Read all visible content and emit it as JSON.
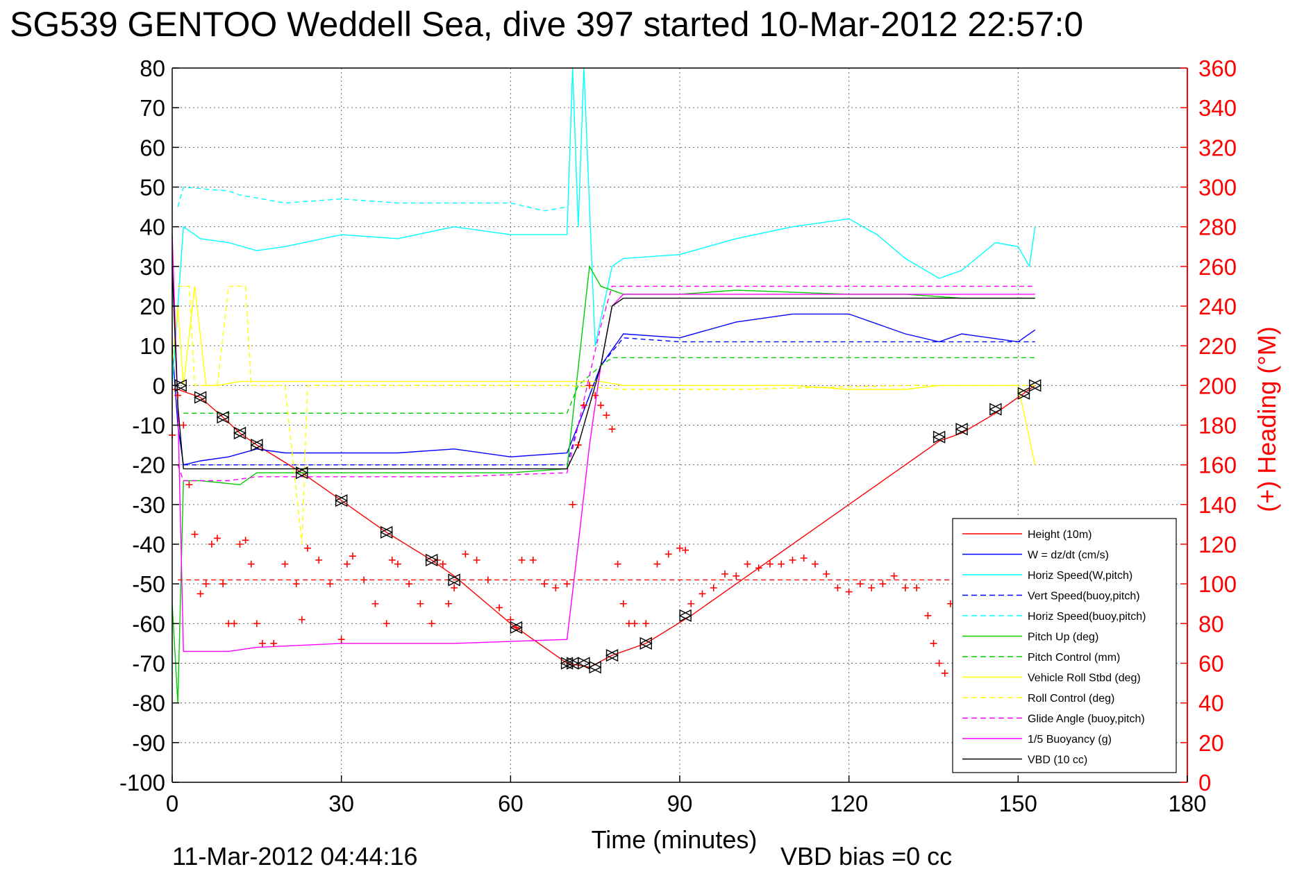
{
  "chart_data": {
    "type": "line",
    "title": "SG539 GENTOO Weddell Sea, dive 397 started 10-Mar-2012 22:57:0",
    "xlabel": "Time (minutes)",
    "ylabel": "",
    "ylabel_right": "(+) Heading (°M)",
    "xlim": [
      0,
      180
    ],
    "ylim": [
      -100,
      80
    ],
    "ylim_right": [
      0,
      360
    ],
    "x_ticks": [
      "0",
      "30",
      "60",
      "90",
      "120",
      "150",
      "180"
    ],
    "y_ticks": [
      "80",
      "70",
      "60",
      "50",
      "40",
      "30",
      "20",
      "10",
      "0",
      "-10",
      "-20",
      "-30",
      "-40",
      "-50",
      "-60",
      "-70",
      "-80",
      "-90",
      "-100"
    ],
    "y_ticks_right": [
      "360",
      "340",
      "320",
      "300",
      "280",
      "260",
      "240",
      "220",
      "200",
      "180",
      "160",
      "140",
      "120",
      "100",
      "80",
      "60",
      "40",
      "20",
      "0"
    ],
    "grid": true,
    "legend_position": "bottom-right",
    "footer_left": "11-Mar-2012 04:44:16",
    "footer_right": "VBD bias =0 cc",
    "series": [
      {
        "name": "Height (10m)",
        "color": "#ff0000",
        "style": "solid",
        "x": [
          0,
          1,
          5,
          9,
          12,
          15,
          23,
          30,
          38,
          46,
          50,
          60,
          70,
          74,
          78,
          84,
          92,
          100,
          110,
          120,
          130,
          136,
          140,
          146,
          150,
          153
        ],
        "y": [
          -1,
          -1,
          -3,
          -8,
          -12,
          -15,
          -22,
          -29,
          -37,
          -44,
          -48,
          -60,
          -70,
          -71,
          -68,
          -65,
          -58,
          -50,
          -40,
          -30,
          -20,
          -14,
          -12,
          -7,
          -3,
          0
        ]
      },
      {
        "name": "W = dz/dt (cm/s)",
        "color": "#0000ff",
        "style": "solid",
        "x": [
          0,
          1,
          2,
          5,
          10,
          15,
          20,
          30,
          40,
          50,
          60,
          70,
          72,
          76,
          80,
          90,
          100,
          110,
          120,
          130,
          136,
          140,
          150,
          153
        ],
        "y": [
          10,
          -10,
          -20,
          -19,
          -18,
          -16,
          -17,
          -17,
          -17,
          -16,
          -18,
          -17,
          -10,
          5,
          13,
          12,
          16,
          18,
          18,
          13,
          11,
          13,
          11,
          14
        ]
      },
      {
        "name": "Horiz Speed(W,pitch)",
        "color": "#00ffff",
        "style": "solid",
        "x": [
          0,
          1,
          2,
          5,
          10,
          15,
          20,
          30,
          40,
          50,
          60,
          70,
          71,
          72,
          73,
          75,
          78,
          80,
          90,
          100,
          110,
          120,
          125,
          130,
          136,
          140,
          146,
          150,
          152,
          153
        ],
        "y": [
          0,
          20,
          40,
          37,
          36,
          34,
          35,
          38,
          37,
          40,
          38,
          38,
          80,
          40,
          80,
          10,
          30,
          32,
          33,
          37,
          40,
          42,
          38,
          32,
          27,
          29,
          36,
          35,
          30,
          40
        ]
      },
      {
        "name": "Vert Speed(buoy,pitch)",
        "color": "#0000ff",
        "style": "dashed",
        "x": [
          2,
          70,
          72,
          76,
          80,
          90,
          91,
          100,
          130,
          153
        ],
        "y": [
          -20,
          -20,
          -10,
          5,
          12,
          11,
          11,
          11,
          11,
          11
        ]
      },
      {
        "name": "Horiz Speed(buoy,pitch)",
        "color": "#00ffff",
        "style": "dashed",
        "x": [
          1,
          2,
          10,
          12,
          20,
          30,
          40,
          50,
          60,
          66,
          70
        ],
        "y": [
          45,
          50,
          49,
          48,
          46,
          47,
          46,
          46,
          46,
          44,
          45
        ]
      },
      {
        "name": "Pitch Up (deg)",
        "color": "#00cc00",
        "style": "solid",
        "x": [
          0,
          1,
          2,
          5,
          12,
          15,
          30,
          50,
          60,
          70,
          74,
          76,
          80,
          90,
          100,
          120,
          130,
          140,
          150,
          153
        ],
        "y": [
          -55,
          -80,
          -24,
          -24,
          -25,
          -22,
          -22,
          -22,
          -22,
          -21,
          30,
          25,
          23,
          23,
          24,
          23,
          23,
          22,
          22,
          22
        ]
      },
      {
        "name": "Pitch Control (mm)",
        "color": "#00cc00",
        "style": "dashed",
        "x": [
          2,
          10,
          20,
          70,
          72,
          76,
          78,
          90,
          100,
          130,
          150,
          153
        ],
        "y": [
          -7,
          -7,
          -7,
          -7,
          0,
          5,
          7,
          7,
          7,
          7,
          7,
          7
        ]
      },
      {
        "name": "Vehicle Roll Stbd (deg)",
        "color": "#ffff00",
        "style": "solid",
        "x": [
          0,
          1,
          2,
          4,
          6,
          8,
          12,
          20,
          30,
          40,
          50,
          60,
          70,
          76,
          80,
          90,
          100,
          110,
          120,
          130,
          136,
          140,
          150,
          153
        ],
        "y": [
          5,
          20,
          0,
          25,
          0,
          0,
          1,
          1,
          1,
          1,
          1,
          1,
          1,
          1,
          0,
          0,
          0,
          0,
          -1,
          -1,
          0,
          0,
          0,
          -20
        ]
      },
      {
        "name": "Roll Control (deg)",
        "color": "#ffff00",
        "style": "dashed",
        "x": [
          1,
          3,
          4,
          6,
          8,
          10,
          13,
          14,
          15,
          20,
          23,
          24,
          30,
          60,
          70,
          80,
          90,
          100,
          130,
          150,
          153
        ],
        "y": [
          25,
          25,
          0,
          0,
          0,
          25,
          25,
          0,
          0,
          0,
          -40,
          0,
          0,
          0,
          0,
          -1,
          -1,
          -1,
          0,
          0,
          0
        ]
      },
      {
        "name": "Glide Angle (buoy,pitch)",
        "color": "#ff00ff",
        "style": "dashed",
        "x": [
          1,
          2,
          10,
          15,
          30,
          50,
          70,
          72,
          76,
          78,
          90,
          100,
          120,
          130,
          150,
          153
        ],
        "y": [
          -20,
          -24,
          -24,
          -23,
          -23,
          -23,
          -22,
          -10,
          15,
          25,
          25,
          25,
          25,
          25,
          25,
          25
        ]
      },
      {
        "name": "1/5 Buoyancy (g)",
        "color": "#ff00ff",
        "style": "solid",
        "x": [
          0,
          1,
          2,
          10,
          15,
          30,
          50,
          70,
          72,
          74,
          76,
          78,
          80,
          90,
          120,
          130,
          150,
          153
        ],
        "y": [
          38,
          -5,
          -67,
          -67,
          -66,
          -65,
          -65,
          -64,
          -40,
          -15,
          5,
          20,
          23,
          23,
          23,
          23,
          23,
          23
        ]
      },
      {
        "name": "VBD (10 cc)",
        "color": "#000000",
        "style": "solid",
        "x": [
          0,
          1,
          2,
          30,
          70,
          72,
          76,
          78,
          80,
          90,
          120,
          130,
          140,
          153
        ],
        "y": [
          30,
          -5,
          -21,
          -21,
          -21,
          -15,
          5,
          20,
          22,
          22,
          22,
          22,
          22,
          22
        ]
      }
    ],
    "heading_series": {
      "name": "(+) Heading (°M)",
      "color": "#ff0000",
      "mean_heading": 102,
      "x": [
        0,
        1,
        2,
        3,
        4,
        5,
        6,
        7,
        8,
        9,
        10,
        11,
        12,
        13,
        14,
        15,
        16,
        18,
        20,
        22,
        23,
        24,
        26,
        28,
        30,
        31,
        32,
        34,
        36,
        38,
        39,
        40,
        42,
        44,
        46,
        47,
        48,
        49,
        50,
        52,
        54,
        56,
        58,
        60,
        61,
        62,
        64,
        66,
        68,
        70,
        71,
        72,
        73,
        74,
        75,
        76,
        77,
        78,
        79,
        80,
        81,
        82,
        84,
        86,
        88,
        90,
        91,
        92,
        94,
        96,
        98,
        100,
        102,
        104,
        106,
        108,
        110,
        112,
        114,
        116,
        118,
        120,
        122,
        124,
        126,
        128,
        130,
        132,
        134,
        135,
        136,
        137,
        138,
        139
      ],
      "y": [
        175,
        195,
        180,
        150,
        125,
        95,
        100,
        120,
        123,
        100,
        80,
        80,
        120,
        122,
        110,
        80,
        70,
        70,
        110,
        100,
        82,
        118,
        112,
        100,
        72,
        110,
        114,
        102,
        90,
        80,
        112,
        110,
        100,
        90,
        80,
        112,
        110,
        90,
        98,
        115,
        112,
        102,
        88,
        82,
        78,
        112,
        112,
        100,
        98,
        100,
        140,
        170,
        190,
        200,
        195,
        190,
        185,
        178,
        110,
        90,
        80,
        80,
        80,
        110,
        115,
        118,
        117,
        90,
        95,
        98,
        105,
        104,
        110,
        108,
        110,
        110,
        112,
        113,
        110,
        105,
        98,
        96,
        100,
        98,
        100,
        104,
        98,
        98,
        84,
        70,
        60,
        55,
        90,
        100
      ]
    },
    "markers": {
      "name": "",
      "glyph": "triangles",
      "x": [
        1.5,
        5,
        9,
        12,
        15,
        23,
        30,
        38,
        46,
        50,
        61,
        70,
        71,
        73,
        75,
        78,
        84,
        91,
        136,
        140,
        146,
        151,
        153
      ],
      "y": [
        0,
        -3,
        -8,
        -12,
        -15,
        -22,
        -29,
        -37,
        -44,
        -49,
        -61,
        -70,
        -70,
        -70,
        -71,
        -68,
        -65,
        -58,
        -13,
        -11,
        -6,
        -2,
        0
      ]
    }
  }
}
